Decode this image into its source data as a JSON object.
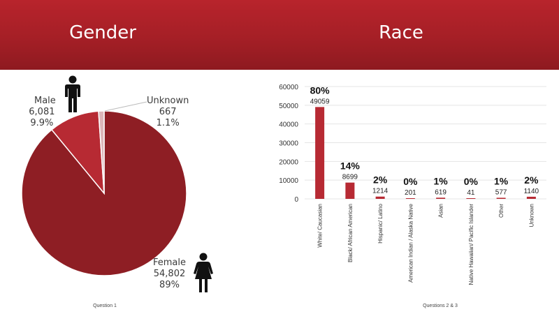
{
  "colors": {
    "header": "#a51f26",
    "female": "#8e1e24",
    "male": "#b72a33",
    "unknown": "#dcb6b9",
    "bar": "#b72a33"
  },
  "gender": {
    "title": "Gender",
    "footnote": "Question 1",
    "male_icon": "male-person-icon",
    "female_icon": "female-person-icon"
  },
  "race": {
    "title": "Race",
    "footnote": "Questions 2 & 3"
  },
  "chart_data": [
    {
      "type": "pie",
      "title": "Gender",
      "slices": [
        {
          "name": "Female",
          "count": "54,802",
          "pct": "89%",
          "value": 54802
        },
        {
          "name": "Male",
          "count": "6,081",
          "pct": "9.9%",
          "value": 6081
        },
        {
          "name": "Unknown",
          "count": "667",
          "pct": "1.1%",
          "value": 667
        }
      ]
    },
    {
      "type": "bar",
      "title": "Race",
      "categories": [
        "White/ Caucasian",
        "Black/ African American",
        "Hispanic/ Latino",
        "American Indian / Alaska Native",
        "Asian",
        "Native Hawaiian/ Pacific Islander",
        "Other",
        "Unknown"
      ],
      "values": [
        49059,
        8699,
        1214,
        201,
        619,
        41,
        577,
        1140
      ],
      "percent_labels": [
        "80%",
        "14%",
        "2%",
        "0%",
        "1%",
        "0%",
        "1%",
        "2%"
      ],
      "ylim": [
        0,
        60000
      ],
      "yticks": [
        0,
        10000,
        20000,
        30000,
        40000,
        50000,
        60000
      ],
      "grid": true,
      "legend": "none"
    }
  ]
}
